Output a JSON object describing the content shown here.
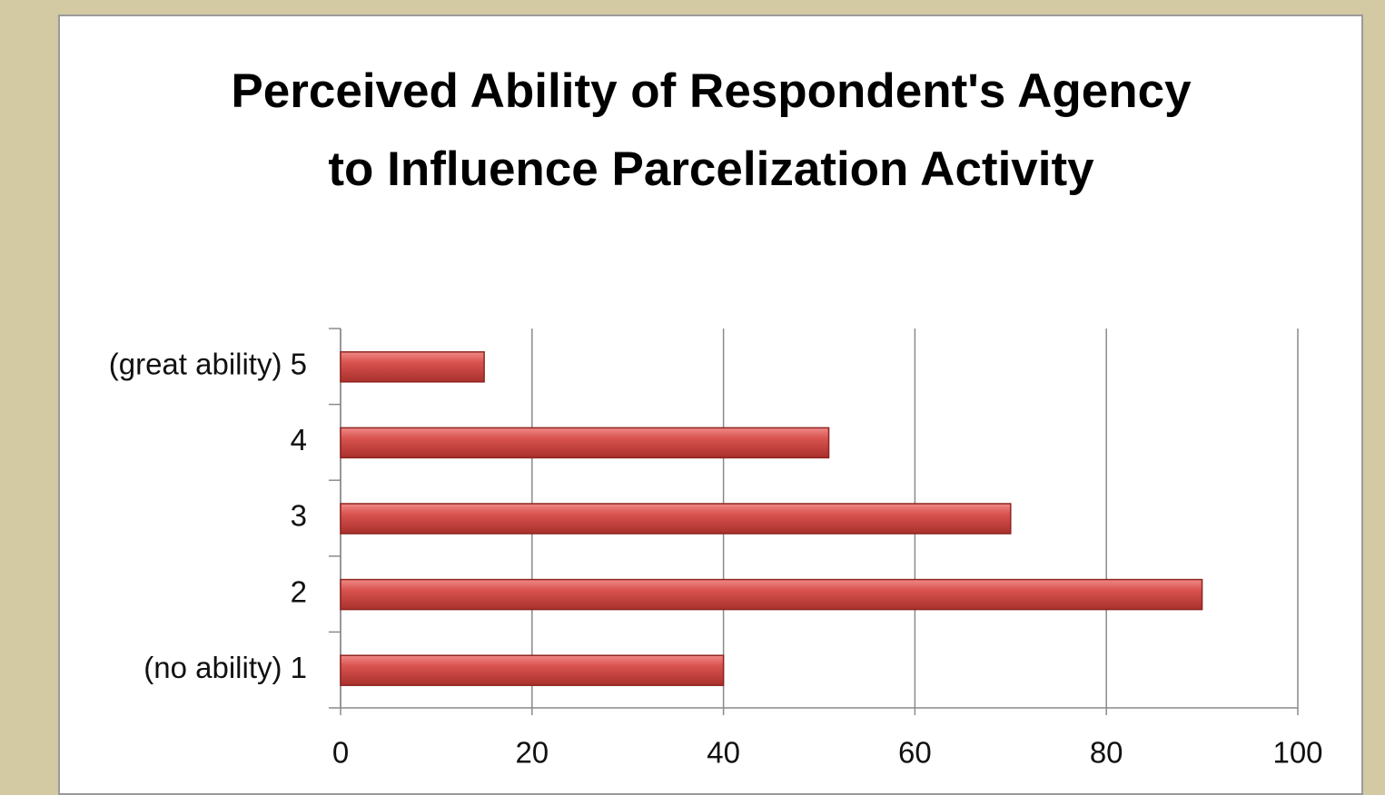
{
  "chart_data": {
    "type": "bar",
    "orientation": "horizontal",
    "title": "Perceived Ability of Respondent's Agency to Influence Parcelization Activity",
    "categories": [
      "(no ability) 1",
      "2",
      "3",
      "4",
      "(great ability) 5"
    ],
    "values": [
      40,
      90,
      70,
      51,
      15
    ],
    "color": "#c0504d",
    "xlim": [
      0,
      100
    ],
    "xticks": [
      0,
      20,
      40,
      60,
      80,
      100
    ],
    "grid": true
  }
}
